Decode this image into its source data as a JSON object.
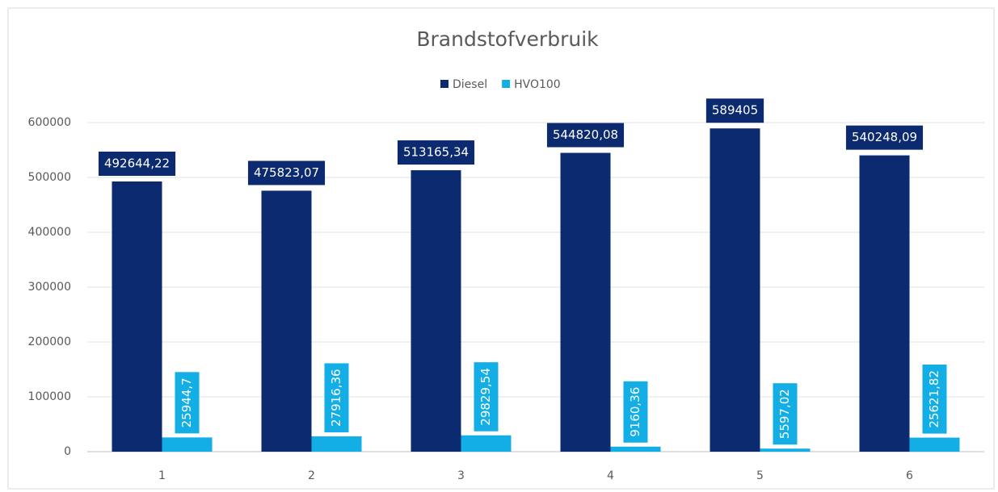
{
  "chart_data": {
    "type": "bar",
    "title": "Brandstofverbruik",
    "categories": [
      "1",
      "2",
      "3",
      "4",
      "5",
      "6"
    ],
    "series": [
      {
        "name": "Diesel",
        "color": "#0b2a6f",
        "values": [
          492644.22,
          475823.07,
          513165.34,
          544820.08,
          589405,
          540248.09
        ],
        "value_labels": [
          "492644,22",
          "475823,07",
          "513165,34",
          "544820,08",
          "589405",
          "540248,09"
        ]
      },
      {
        "name": "HVO100",
        "color": "#14aee6",
        "values": [
          25944.7,
          27916.36,
          29829.54,
          9160.36,
          5597.02,
          25621.82
        ],
        "value_labels": [
          "25944,7",
          "27916,36",
          "29829,54",
          "9160,36",
          "5597,02",
          "25621,82"
        ]
      }
    ],
    "ylim": [
      0,
      600000
    ],
    "yticks": [
      0,
      100000,
      200000,
      300000,
      400000,
      500000,
      600000
    ],
    "grid": true,
    "legend": "top"
  }
}
